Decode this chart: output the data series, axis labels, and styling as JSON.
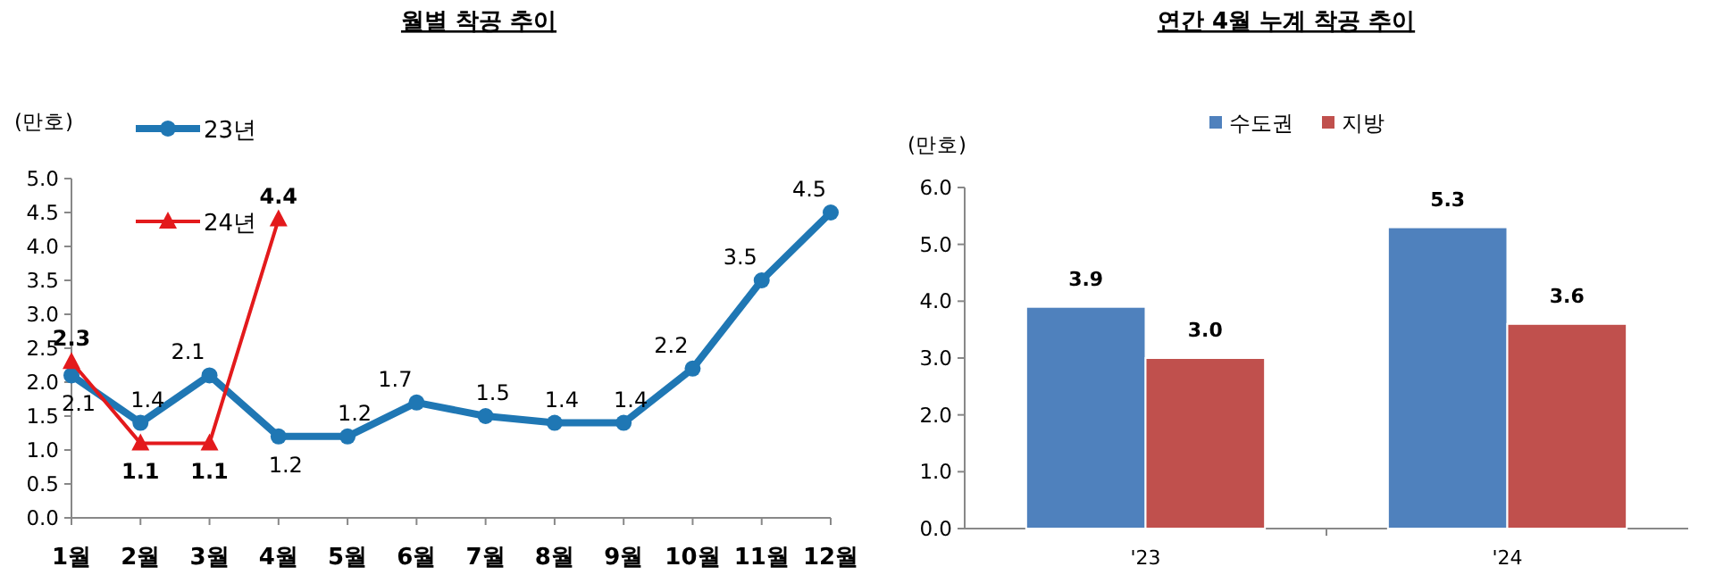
{
  "chart_data": [
    {
      "type": "line",
      "title": "월별 착공 추이",
      "ylabel": "(만호)",
      "categories": [
        "1월",
        "2월",
        "3월",
        "4월",
        "5월",
        "6월",
        "7월",
        "8월",
        "9월",
        "10월",
        "11월",
        "12월"
      ],
      "series": [
        {
          "name": "23년",
          "color": "#1f77b4",
          "marker": "circle",
          "values": [
            2.1,
            1.4,
            2.1,
            1.2,
            1.2,
            1.7,
            1.5,
            1.4,
            1.4,
            2.2,
            3.5,
            4.5
          ]
        },
        {
          "name": "24년",
          "color": "#e31a1c",
          "marker": "triangle",
          "values": [
            2.3,
            1.1,
            1.1,
            4.4,
            null,
            null,
            null,
            null,
            null,
            null,
            null,
            null
          ]
        }
      ],
      "ylim": [
        0,
        5
      ],
      "yticks": [
        {
          "value": 0,
          "label": "0.0"
        },
        {
          "value": 0.5,
          "label": "0.5"
        },
        {
          "value": 1,
          "label": "1.0"
        },
        {
          "value": 1.5,
          "label": "1.5"
        },
        {
          "value": 2,
          "label": "2.0"
        },
        {
          "value": 2.5,
          "label": "2.5"
        },
        {
          "value": 3,
          "label": "3.0"
        },
        {
          "value": 3.5,
          "label": "3.5"
        },
        {
          "value": 4,
          "label": "4.0"
        },
        {
          "value": 4.5,
          "label": "4.5"
        },
        {
          "value": 5,
          "label": "5.0"
        }
      ],
      "legend": "top left",
      "data_labels": true
    },
    {
      "type": "bar",
      "title": "연간 4월 누계 착공 추이",
      "ylabel": "(만호)",
      "categories": [
        "'23",
        "'24"
      ],
      "series": [
        {
          "name": "수도권",
          "color": "#4f81bd",
          "values": [
            3.9,
            5.3
          ],
          "value_labels": [
            "3.9",
            "5.3"
          ]
        },
        {
          "name": "지방",
          "color": "#c0504d",
          "values": [
            3.0,
            3.6
          ],
          "value_labels": [
            "3.0",
            "3.6"
          ]
        }
      ],
      "ylim": [
        0,
        6
      ],
      "yticks": [
        {
          "value": 0,
          "label": "0.0"
        },
        {
          "value": 1,
          "label": "1.0"
        },
        {
          "value": 2,
          "label": "2.0"
        },
        {
          "value": 3,
          "label": "3.0"
        },
        {
          "value": 4,
          "label": "4.0"
        },
        {
          "value": 5,
          "label": "5.0"
        },
        {
          "value": 6,
          "label": "6.0"
        }
      ],
      "legend": "top"
    }
  ]
}
